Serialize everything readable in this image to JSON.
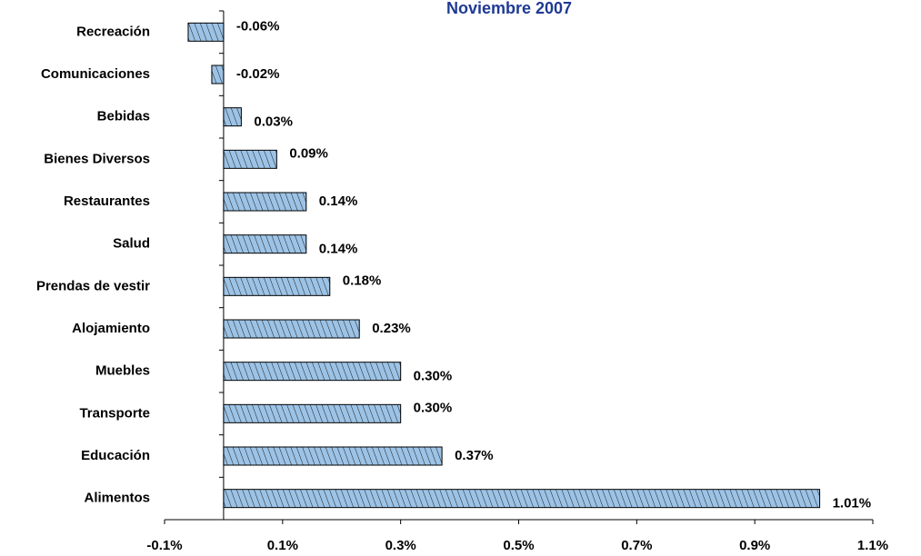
{
  "chart_data": {
    "type": "bar",
    "orientation": "horizontal",
    "title": "Noviembre 2007",
    "categories": [
      "Recreación",
      "Comunicaciones",
      "Bebidas",
      "Bienes Diversos",
      "Restaurantes",
      "Salud",
      "Prendas de vestir",
      "Alojamiento",
      "Muebles",
      "Transporte",
      "Educación",
      "Alimentos"
    ],
    "values": [
      -0.06,
      -0.02,
      0.03,
      0.09,
      0.14,
      0.14,
      0.18,
      0.23,
      0.3,
      0.3,
      0.37,
      1.01
    ],
    "value_labels": [
      "-0.06%",
      "-0.02%",
      "0.03%",
      "0.09%",
      "0.14%",
      "0.14%",
      "0.18%",
      "0.23%",
      "0.30%",
      "0.30%",
      "0.37%",
      "1.01%"
    ],
    "color": "#9cc3e6",
    "xlim": [
      -0.1,
      1.1
    ],
    "xticks": [
      {
        "value": -0.1,
        "label": "-0.1%"
      },
      {
        "value": 0.1,
        "label": "0.1%"
      },
      {
        "value": 0.3,
        "label": "0.3%"
      },
      {
        "value": 0.5,
        "label": "0.5%"
      },
      {
        "value": 0.7,
        "label": "0.7%"
      },
      {
        "value": 0.9,
        "label": "0.9%"
      },
      {
        "value": 1.1,
        "label": "1.1%"
      }
    ],
    "grid": false
  }
}
